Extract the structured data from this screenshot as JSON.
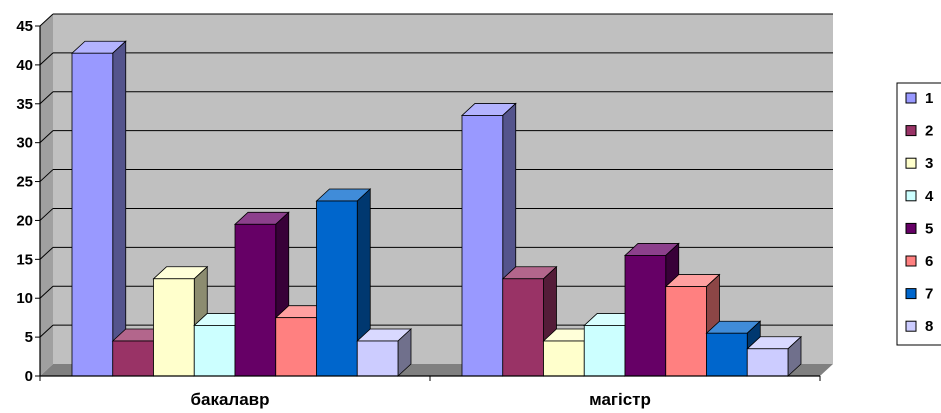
{
  "chart_data": {
    "type": "bar",
    "categories": [
      "бакалавр",
      "магістр"
    ],
    "series": [
      {
        "name": "1",
        "values": [
          41.5,
          33.5
        ],
        "color": "#9999ff"
      },
      {
        "name": "2",
        "values": [
          4.5,
          12.5
        ],
        "color": "#993366"
      },
      {
        "name": "3",
        "values": [
          12.5,
          4.5
        ],
        "color": "#ffffcc"
      },
      {
        "name": "4",
        "values": [
          6.5,
          6.5
        ],
        "color": "#ccffff"
      },
      {
        "name": "5",
        "values": [
          19.5,
          15.5
        ],
        "color": "#660066"
      },
      {
        "name": "6",
        "values": [
          7.5,
          11.5
        ],
        "color": "#ff8080"
      },
      {
        "name": "7",
        "values": [
          22.5,
          5.5
        ],
        "color": "#0066cc"
      },
      {
        "name": "8",
        "values": [
          4.5,
          3.5
        ],
        "color": "#ccccff"
      }
    ],
    "yticks": [
      "0",
      "5",
      "10",
      "15",
      "20",
      "25",
      "30",
      "35",
      "40",
      "45"
    ],
    "ylim": [
      0,
      45
    ],
    "grid": true,
    "legend_position": "right",
    "style": "3d-column",
    "plot_background": "#c0c0c0"
  }
}
